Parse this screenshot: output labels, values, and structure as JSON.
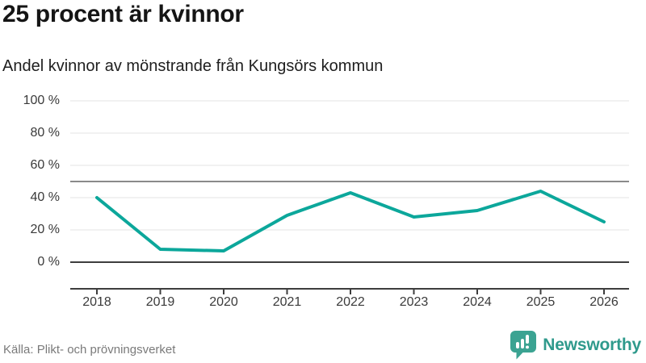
{
  "header": {
    "title": "25 procent är kvinnor",
    "subtitle": "Andel kvinnor av mönstrande från Kungsörs kommun"
  },
  "footer": {
    "source": "Källa: Plikt- och prövningsverket",
    "brand": "Newsworthy"
  },
  "chart_data": {
    "type": "line",
    "title": "Andel kvinnor av mönstrande från Kungsörs kommun",
    "x_labels": [
      "2018",
      "2019",
      "2020",
      "2021",
      "2022",
      "2023",
      "2024",
      "2025",
      "2026"
    ],
    "series": [
      {
        "name": "Andel kvinnor",
        "values": [
          40,
          8,
          7,
          29,
          43,
          28,
          32,
          44,
          25
        ]
      }
    ],
    "unit": "%",
    "ylim": [
      0,
      100
    ],
    "yticks": [
      0,
      20,
      40,
      60,
      80,
      100
    ],
    "y_tick_labels": [
      "0 %",
      "20 %",
      "40 %",
      "60 %",
      "80 %",
      "100 %"
    ],
    "reference_line": 50,
    "grid": "horizontal",
    "legend": "none"
  },
  "colors": {
    "line": "#0ca79b",
    "grid": "#e3e3e3",
    "reference": "#8a8a8a",
    "axis": "#3d3d3d",
    "brand": "#2f9a8c",
    "logo_bubble": "#3ba392"
  }
}
